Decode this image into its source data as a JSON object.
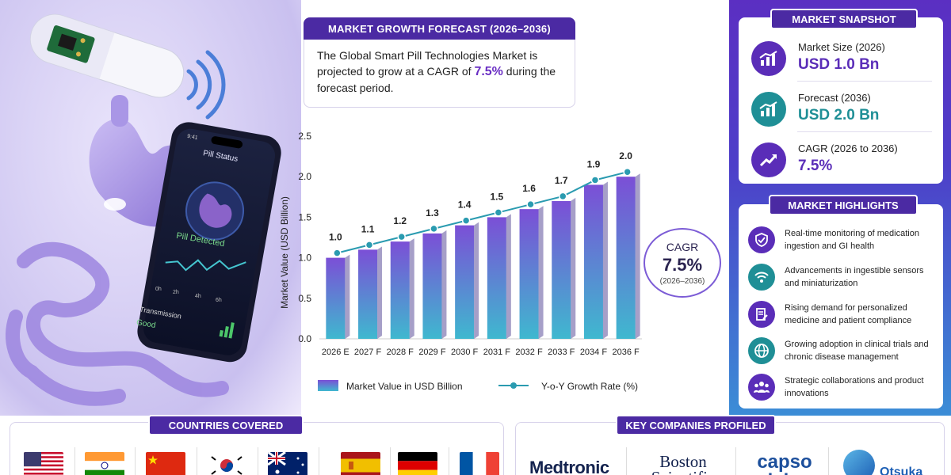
{
  "forecast": {
    "title": "MARKET GROWTH FORECAST (2026–2036)",
    "text_before": "The Global Smart Pill Technologies Market is projected to grow at a CAGR of ",
    "cagr": "7.5%",
    "text_after": " during the forecast period."
  },
  "phone": {
    "time": "9:41",
    "status_title": "Pill Status",
    "detected": "Pill Detected",
    "ticks": [
      "0h",
      "2h",
      "4h",
      "6h"
    ],
    "transmission_label": "Transmission",
    "transmission_value": "Good"
  },
  "chart_data": {
    "type": "bar",
    "categories": [
      "2026 E",
      "2027 F",
      "2028 F",
      "2029 F",
      "2030 F",
      "2031 F",
      "2032 F",
      "2033 F",
      "2034 F",
      "2036 F"
    ],
    "values": [
      1.0,
      1.1,
      1.2,
      1.3,
      1.4,
      1.5,
      1.6,
      1.7,
      1.9,
      2.0
    ],
    "ylabel": "Market Value (USD Billion)",
    "ylim": [
      0,
      2.5
    ],
    "yticks": [
      "0.0",
      "0.5",
      "1.0",
      "1.5",
      "2.0",
      "2.5"
    ],
    "series": [
      {
        "name": "Market Value in USD Billion",
        "values": [
          1.0,
          1.1,
          1.2,
          1.3,
          1.4,
          1.5,
          1.6,
          1.7,
          1.9,
          2.0
        ]
      },
      {
        "name": "Y-o-Y Growth Rate (%)"
      }
    ],
    "grid": false,
    "legend": "bottom",
    "colors": {
      "bar_top": "#7b4fd6",
      "bar_bottom": "#3fb8cf",
      "line": "#2a9bb0"
    }
  },
  "cagr_bubble": {
    "label": "CAGR",
    "value": "7.5%",
    "period": "(2026–2036)"
  },
  "snapshot": {
    "title": "MARKET SNAPSHOT",
    "items": [
      {
        "label": "Market Size (2026)",
        "value": "USD 1.0 Bn",
        "color": "#5a2db8",
        "icon": "bar-chart-up-icon"
      },
      {
        "label": "Forecast (2036)",
        "value": "USD 2.0 Bn",
        "color": "#1f8f96",
        "icon": "bar-chart-up-icon"
      },
      {
        "label": "CAGR (2026 to 2036)",
        "value": "7.5%",
        "color": "#5a2db8",
        "icon": "trend-up-icon"
      }
    ]
  },
  "highlights": {
    "title": "MARKET HIGHLIGHTS",
    "items": [
      {
        "text": "Real-time monitoring of medication ingestion and GI health",
        "icon": "shield-check-icon",
        "color": "#5a2db8"
      },
      {
        "text": "Advancements in ingestible sensors and miniaturization",
        "icon": "wifi-signal-icon",
        "color": "#1f8f96"
      },
      {
        "text": "Rising demand for personalized medicine and patient compliance",
        "icon": "document-edit-icon",
        "color": "#5a2db8"
      },
      {
        "text": "Growing adoption in clinical trials and chronic disease management",
        "icon": "globe-icon",
        "color": "#1f8f96"
      },
      {
        "text": "Strategic collaborations and product innovations",
        "icon": "people-icon",
        "color": "#5a2db8"
      }
    ]
  },
  "countries": {
    "title": "COUNTRIES COVERED",
    "flags": [
      "usa-flag",
      "india-flag",
      "china-flag",
      "south-korea-flag",
      "australia-flag",
      "spain-flag",
      "germany-flag",
      "france-flag"
    ]
  },
  "companies": {
    "title": "KEY COMPANIES PROFILED",
    "logos": [
      "Medtronic",
      "Boston Scientific",
      "capso vision",
      "Otsuka"
    ]
  }
}
